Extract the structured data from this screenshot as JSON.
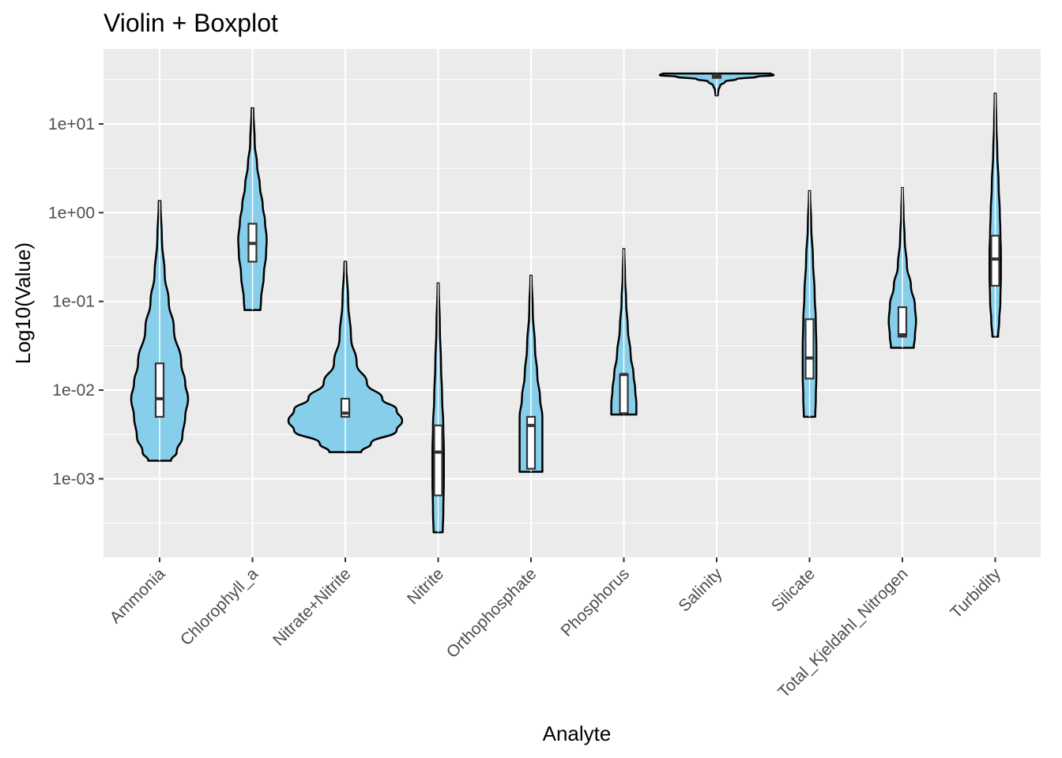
{
  "chart_data": {
    "type": "violin",
    "title": "Violin + Boxplot",
    "xlabel": "Analyte",
    "ylabel": "Log10(Value)",
    "y_scale": "log10",
    "ylim": [
      0.00013,
      70
    ],
    "y_ticks": [
      0.001,
      0.01,
      0.1,
      1,
      10
    ],
    "y_tick_labels": [
      "1e-03",
      "1e-02",
      "1e-01",
      "1e+00",
      "1e+01"
    ],
    "grid": true,
    "legend": "none",
    "colors": {
      "violin_fill": "#87ceeb",
      "violin_stroke": "#000000",
      "box_fill": "#ffffff",
      "box_stroke": "#333333",
      "panel": "#ebebeb",
      "grid": "#ffffff"
    },
    "categories": [
      "Ammonia",
      "Chlorophyll_a",
      "Nitrate+Nitrite",
      "Nitrite",
      "Orthophosphate",
      "Phosphorus",
      "Salinity",
      "Silicate",
      "Total_Kjeldahl_Nitrogen",
      "Turbidity"
    ],
    "series": [
      {
        "min": 0.0016,
        "q1": 0.005,
        "median": 0.008,
        "q3": 0.02,
        "max": 1.35,
        "profile": [
          [
            0.0016,
            0.2
          ],
          [
            0.002,
            0.3
          ],
          [
            0.003,
            0.4
          ],
          [
            0.005,
            0.45
          ],
          [
            0.008,
            0.5
          ],
          [
            0.012,
            0.45
          ],
          [
            0.02,
            0.38
          ],
          [
            0.05,
            0.25
          ],
          [
            0.1,
            0.16
          ],
          [
            0.2,
            0.09
          ],
          [
            0.5,
            0.04
          ],
          [
            1.35,
            0.015
          ]
        ]
      },
      {
        "min": 0.08,
        "q1": 0.28,
        "median": 0.45,
        "q3": 0.75,
        "max": 15,
        "profile": [
          [
            0.08,
            0.14
          ],
          [
            0.1,
            0.15
          ],
          [
            0.2,
            0.2
          ],
          [
            0.35,
            0.24
          ],
          [
            0.5,
            0.25
          ],
          [
            0.8,
            0.22
          ],
          [
            1.2,
            0.18
          ],
          [
            2,
            0.13
          ],
          [
            3.5,
            0.08
          ],
          [
            6,
            0.04
          ],
          [
            15,
            0.015
          ]
        ]
      },
      {
        "min": 0.002,
        "q1": 0.005,
        "median": 0.0055,
        "q3": 0.008,
        "max": 0.28,
        "profile": [
          [
            0.002,
            0.28
          ],
          [
            0.0025,
            0.45
          ],
          [
            0.0035,
            0.9
          ],
          [
            0.0045,
            1.0
          ],
          [
            0.006,
            0.9
          ],
          [
            0.008,
            0.65
          ],
          [
            0.012,
            0.38
          ],
          [
            0.02,
            0.2
          ],
          [
            0.04,
            0.1
          ],
          [
            0.1,
            0.05
          ],
          [
            0.28,
            0.015
          ]
        ]
      },
      {
        "min": 0.00025,
        "q1": 0.00065,
        "median": 0.002,
        "q3": 0.004,
        "max": 0.16,
        "profile": [
          [
            0.00025,
            0.08
          ],
          [
            0.0004,
            0.09
          ],
          [
            0.001,
            0.1
          ],
          [
            0.002,
            0.1
          ],
          [
            0.004,
            0.09
          ],
          [
            0.008,
            0.07
          ],
          [
            0.02,
            0.05
          ],
          [
            0.05,
            0.03
          ],
          [
            0.16,
            0.01
          ]
        ]
      },
      {
        "min": 0.0012,
        "q1": 0.0013,
        "median": 0.004,
        "q3": 0.005,
        "max": 0.195,
        "profile": [
          [
            0.0012,
            0.2
          ],
          [
            0.0015,
            0.2
          ],
          [
            0.003,
            0.2
          ],
          [
            0.005,
            0.2
          ],
          [
            0.008,
            0.16
          ],
          [
            0.015,
            0.11
          ],
          [
            0.03,
            0.07
          ],
          [
            0.08,
            0.03
          ],
          [
            0.195,
            0.01
          ]
        ]
      },
      {
        "min": 0.0053,
        "q1": 0.0055,
        "median": 0.015,
        "q3": 0.015,
        "max": 0.39,
        "profile": [
          [
            0.0053,
            0.22
          ],
          [
            0.007,
            0.22
          ],
          [
            0.01,
            0.2
          ],
          [
            0.015,
            0.17
          ],
          [
            0.025,
            0.12
          ],
          [
            0.05,
            0.07
          ],
          [
            0.1,
            0.04
          ],
          [
            0.2,
            0.02
          ],
          [
            0.39,
            0.008
          ]
        ]
      },
      {
        "min": 21,
        "q1": 33,
        "median": 34.5,
        "q3": 36,
        "max": 37,
        "profile": [
          [
            21,
            0.02
          ],
          [
            24,
            0.03
          ],
          [
            27,
            0.06
          ],
          [
            30,
            0.15
          ],
          [
            32,
            0.35
          ],
          [
            34,
            0.7
          ],
          [
            35.5,
            1.0
          ],
          [
            37,
            0.95
          ]
        ]
      },
      {
        "min": 0.005,
        "q1": 0.0135,
        "median": 0.023,
        "q3": 0.063,
        "max": 1.75,
        "profile": [
          [
            0.005,
            0.1
          ],
          [
            0.008,
            0.11
          ],
          [
            0.015,
            0.12
          ],
          [
            0.03,
            0.12
          ],
          [
            0.06,
            0.11
          ],
          [
            0.12,
            0.09
          ],
          [
            0.3,
            0.06
          ],
          [
            0.7,
            0.03
          ],
          [
            1.75,
            0.01
          ]
        ]
      },
      {
        "min": 0.03,
        "q1": 0.04,
        "median": 0.042,
        "q3": 0.086,
        "max": 1.9,
        "profile": [
          [
            0.03,
            0.2
          ],
          [
            0.04,
            0.22
          ],
          [
            0.06,
            0.24
          ],
          [
            0.09,
            0.22
          ],
          [
            0.15,
            0.15
          ],
          [
            0.25,
            0.08
          ],
          [
            0.5,
            0.04
          ],
          [
            1,
            0.02
          ],
          [
            1.9,
            0.008
          ]
        ]
      },
      {
        "min": 0.04,
        "q1": 0.15,
        "median": 0.3,
        "q3": 0.55,
        "max": 22,
        "profile": [
          [
            0.04,
            0.05
          ],
          [
            0.06,
            0.07
          ],
          [
            0.1,
            0.09
          ],
          [
            0.2,
            0.1
          ],
          [
            0.35,
            0.1
          ],
          [
            0.6,
            0.09
          ],
          [
            1,
            0.08
          ],
          [
            2,
            0.06
          ],
          [
            5,
            0.035
          ],
          [
            10,
            0.02
          ],
          [
            22,
            0.01
          ]
        ]
      }
    ]
  }
}
